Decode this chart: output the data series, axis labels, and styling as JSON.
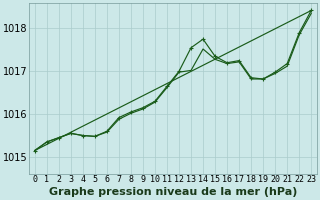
{
  "title": "Graphe pression niveau de la mer (hPa)",
  "background_color": "#cce8e8",
  "grid_color": "#aacccc",
  "line_color": "#1a5c1a",
  "xlim": [
    -0.5,
    23.5
  ],
  "ylim": [
    1014.6,
    1018.6
  ],
  "yticks": [
    1015,
    1016,
    1017,
    1018
  ],
  "xticks": [
    0,
    1,
    2,
    3,
    4,
    5,
    6,
    7,
    8,
    9,
    10,
    11,
    12,
    13,
    14,
    15,
    16,
    17,
    18,
    19,
    20,
    21,
    22,
    23
  ],
  "series_detailed": [
    1015.15,
    1015.35,
    1015.45,
    1015.55,
    1015.5,
    1015.48,
    1015.6,
    1015.92,
    1016.05,
    1016.15,
    1016.3,
    1016.65,
    1017.0,
    1017.55,
    1017.75,
    1017.35,
    1017.2,
    1017.25,
    1016.85,
    1016.82,
    1016.98,
    1017.18,
    1017.9,
    1018.42
  ],
  "series_smooth": [
    1015.15,
    1015.35,
    1015.45,
    1015.55,
    1015.5,
    1015.48,
    1015.58,
    1015.88,
    1016.02,
    1016.12,
    1016.28,
    1016.62,
    1016.98,
    1017.02,
    1017.52,
    1017.28,
    1017.18,
    1017.22,
    1016.82,
    1016.82,
    1016.95,
    1017.12,
    1017.85,
    1018.35
  ],
  "series_trend_x": [
    0,
    23
  ],
  "series_trend_y": [
    1015.15,
    1018.42
  ],
  "title_fontsize": 8,
  "tick_fontsize": 6,
  "ytick_fontsize": 7
}
